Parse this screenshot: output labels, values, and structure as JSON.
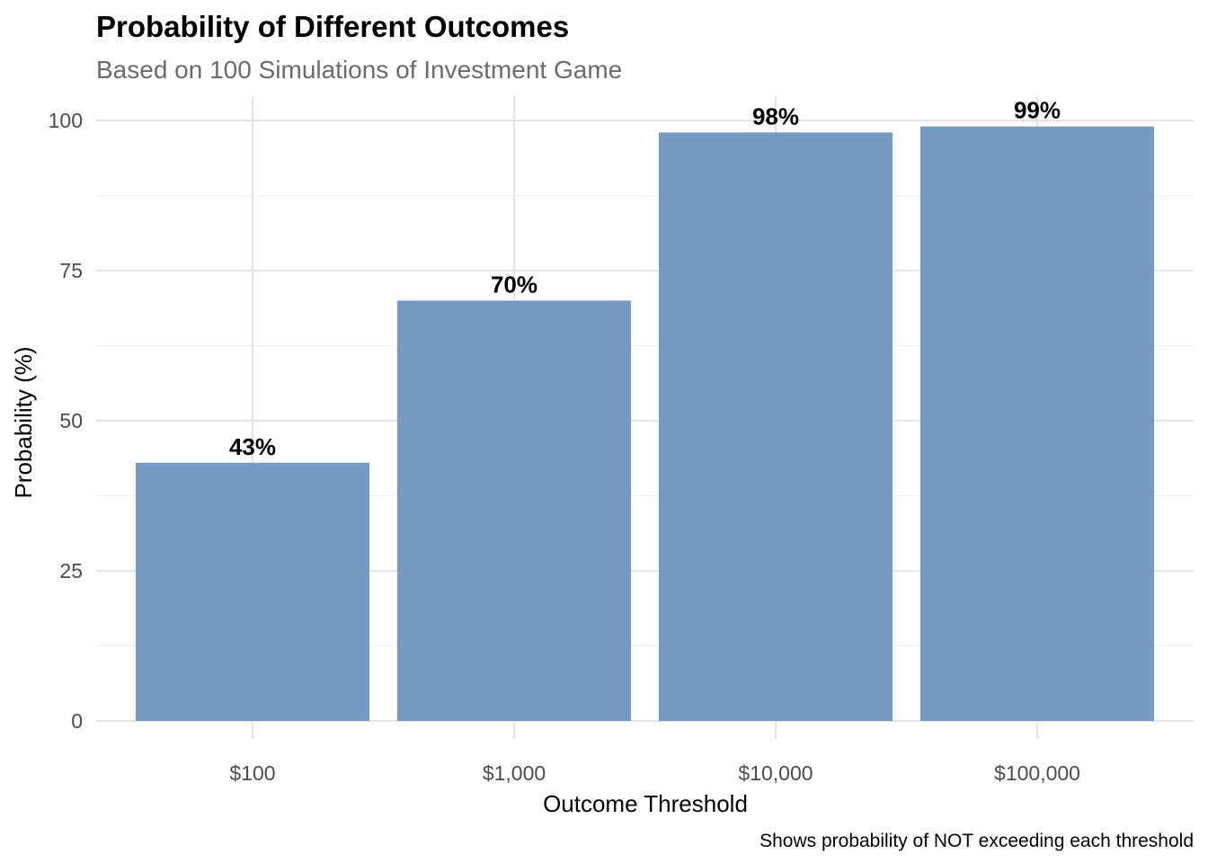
{
  "chart_data": {
    "type": "bar",
    "title": "Probability of Different Outcomes",
    "subtitle": "Based on 100 Simulations of Investment Game",
    "xlabel": "Outcome Threshold",
    "ylabel": "Probability (%)",
    "caption": "Shows probability of NOT exceeding each threshold",
    "categories": [
      "$100",
      "$1,000",
      "$10,000",
      "$100,000"
    ],
    "values": [
      43,
      70,
      98,
      99
    ],
    "data_labels": [
      "43%",
      "70%",
      "98%",
      "99%"
    ],
    "ylim": [
      0,
      100
    ],
    "y_ticks": [
      0,
      25,
      50,
      75,
      100
    ],
    "y_tick_labels": [
      "0",
      "25",
      "50",
      "75",
      "100"
    ],
    "grid": true,
    "legend": "none",
    "bar_color": "#6a93bf"
  }
}
